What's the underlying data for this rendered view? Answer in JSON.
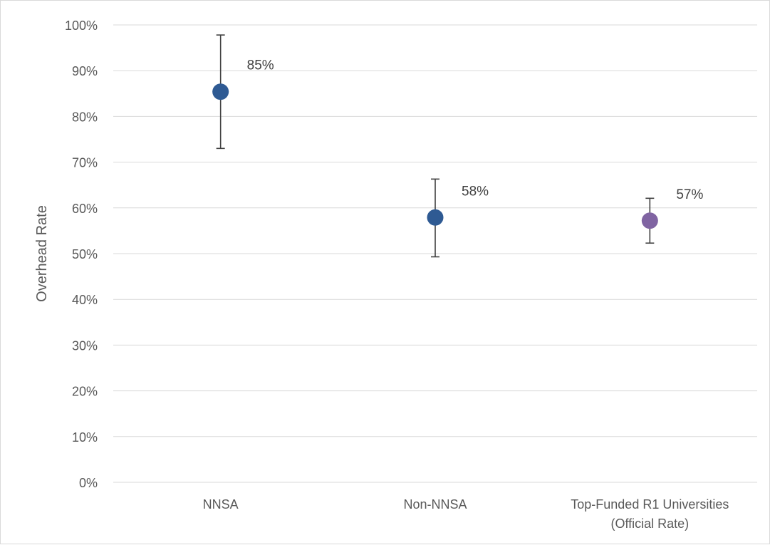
{
  "chart_data": {
    "type": "scatter",
    "title": "",
    "xlabel": "",
    "ylabel": "Overhead Rate",
    "ylim": [
      0,
      100
    ],
    "y_tick_step": 10,
    "y_tick_labels": [
      "0%",
      "10%",
      "20%",
      "30%",
      "40%",
      "50%",
      "60%",
      "70%",
      "80%",
      "90%",
      "100%"
    ],
    "grid": "horizontal",
    "legend": "none",
    "categories": [
      [
        "NNSA"
      ],
      [
        "Non-NNSA"
      ],
      [
        "Top-Funded R1 Universities",
        "(Official Rate)"
      ]
    ],
    "points": [
      {
        "value": 85.4,
        "low": 73,
        "high": 97.8,
        "label": "85%",
        "color": "#2e5a93"
      },
      {
        "value": 57.9,
        "low": 49.3,
        "high": 66.3,
        "label": "58%",
        "color": "#2e5a93"
      },
      {
        "value": 57.2,
        "low": 52.3,
        "high": 62.1,
        "label": "57%",
        "color": "#8064a2"
      }
    ],
    "colors": {
      "grid": "#d9d9d9",
      "error_bar": "#404040",
      "text": "#595959"
    }
  }
}
